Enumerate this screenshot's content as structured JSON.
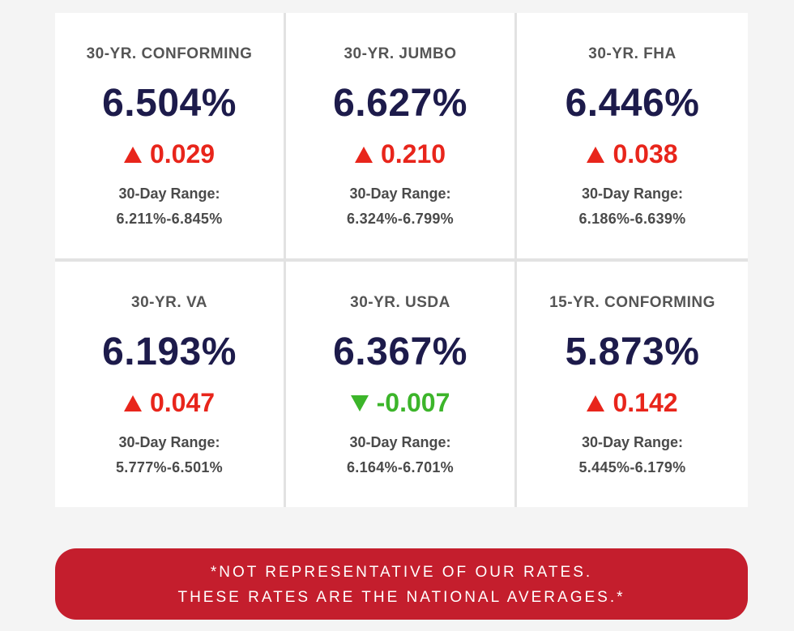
{
  "cards": [
    {
      "title": "30-YR. CONFORMING",
      "rate": "6.504%",
      "direction": "up",
      "change": "0.029",
      "range_label": "30-Day Range:",
      "range": "6.211%-6.845%"
    },
    {
      "title": "30-YR. JUMBO",
      "rate": "6.627%",
      "direction": "up",
      "change": "0.210",
      "range_label": "30-Day Range:",
      "range": "6.324%-6.799%"
    },
    {
      "title": "30-YR. FHA",
      "rate": "6.446%",
      "direction": "up",
      "change": "0.038",
      "range_label": "30-Day Range:",
      "range": "6.186%-6.639%"
    },
    {
      "title": "30-YR. VA",
      "rate": "6.193%",
      "direction": "up",
      "change": "0.047",
      "range_label": "30-Day Range:",
      "range": "5.777%-6.501%"
    },
    {
      "title": "30-YR. USDA",
      "rate": "6.367%",
      "direction": "down",
      "change": "-0.007",
      "range_label": "30-Day Range:",
      "range": "6.164%-6.701%"
    },
    {
      "title": "15-YR. CONFORMING",
      "rate": "5.873%",
      "direction": "up",
      "change": "0.142",
      "range_label": "30-Day Range:",
      "range": "5.445%-6.179%"
    }
  ],
  "disclaimer": {
    "line1": "*NOT REPRESENTATIVE OF OUR RATES.",
    "line2": "THESE RATES ARE THE NATIONAL AVERAGES.*"
  },
  "colors": {
    "rate_text": "#1d1b4b",
    "increase": "#e8251b",
    "decrease": "#3cb52a",
    "banner": "#c41e2d"
  },
  "icons": {
    "increase": "triangle-up-icon",
    "decrease": "triangle-down-icon"
  }
}
